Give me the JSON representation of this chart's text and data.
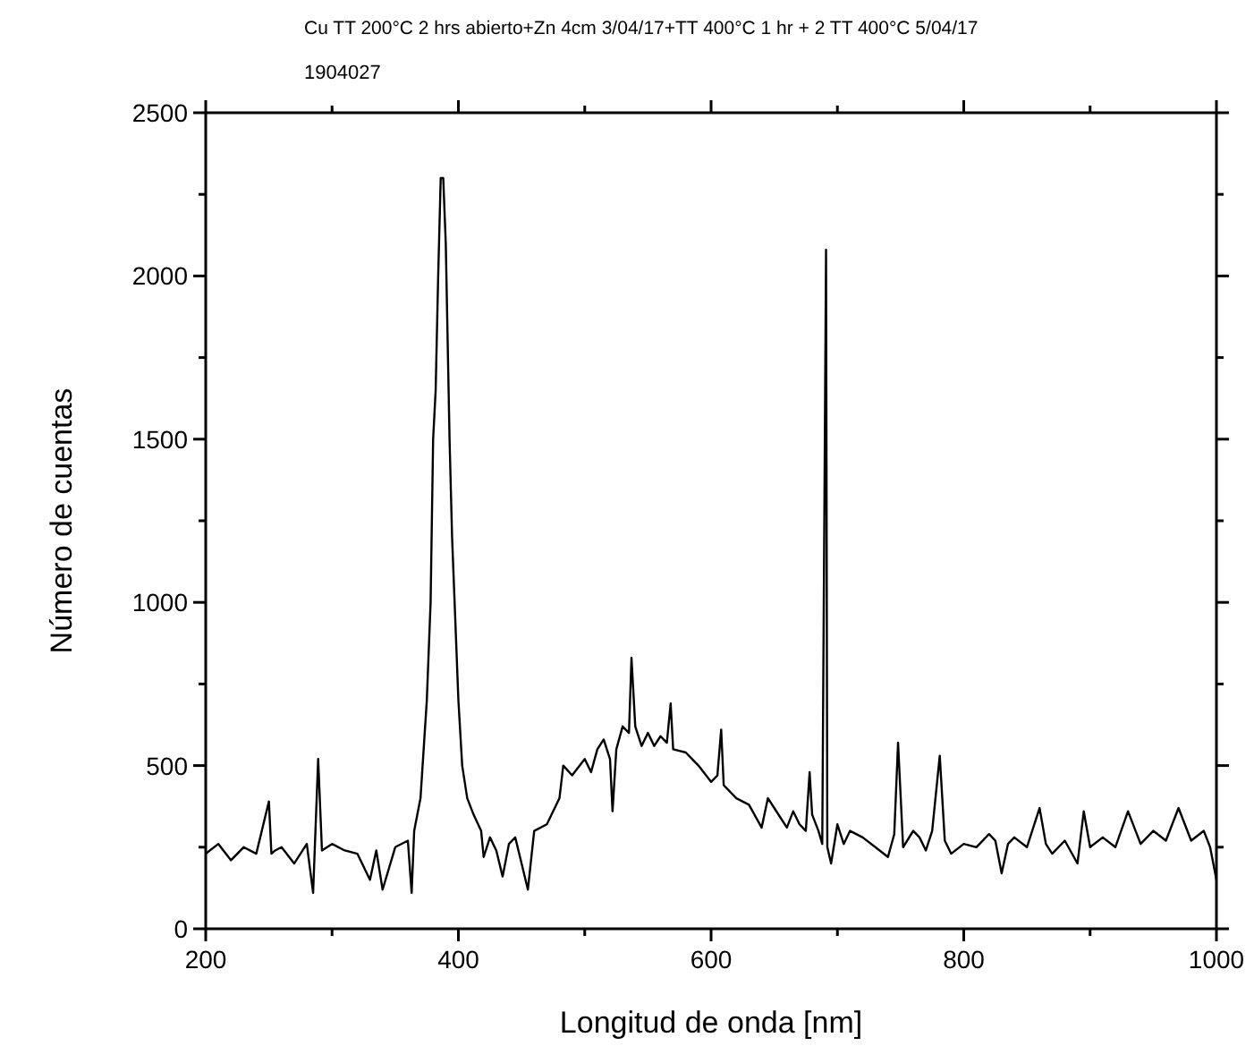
{
  "chart_data": {
    "type": "line",
    "title": "Cu TT 200°C 2 hrs abierto+Zn 4cm 3/04/17+TT 400°C 1 hr + 2 TT 400°C 5/04/17",
    "subtitle": "1904027",
    "xlabel": "Longitud de onda [nm]",
    "ylabel": "Número de cuentas",
    "xlim": [
      200,
      1000
    ],
    "ylim": [
      0,
      2500
    ],
    "xticks": [
      200,
      {
        "value": 300,
        "label": null
      },
      400,
      {
        "value": 500,
        "label": null
      },
      600,
      {
        "value": 700,
        "label": null
      },
      800,
      {
        "value": 900,
        "label": null
      },
      1000
    ],
    "yticks": [
      0,
      {
        "value": 250,
        "label": null
      },
      500,
      {
        "value": 750,
        "label": null
      },
      1000,
      {
        "value": 1250,
        "label": null
      },
      1500,
      {
        "value": 1750,
        "label": null
      },
      2000,
      {
        "value": 2250,
        "label": null
      },
      2500
    ],
    "grid": false,
    "marker": "none",
    "line_style": "solid",
    "series": [
      {
        "color": "#000000",
        "x": [
          200,
          210,
          220,
          230,
          240,
          250,
          252,
          255,
          260,
          270,
          280,
          285,
          289,
          292,
          300,
          310,
          320,
          330,
          335,
          340,
          350,
          360,
          363,
          365,
          370,
          375,
          378,
          380,
          382,
          384,
          386,
          388,
          390,
          393,
          395,
          398,
          400,
          403,
          407,
          412,
          418,
          420,
          425,
          430,
          435,
          440,
          445,
          450,
          455,
          460,
          470,
          480,
          483,
          490,
          500,
          505,
          510,
          515,
          520,
          522,
          525,
          530,
          535,
          537,
          540,
          545,
          550,
          555,
          560,
          565,
          568,
          570,
          580,
          590,
          600,
          605,
          608,
          610,
          620,
          630,
          640,
          645,
          650,
          660,
          665,
          670,
          675,
          678,
          680,
          685,
          688,
          691,
          692,
          695,
          700,
          705,
          710,
          720,
          730,
          740,
          745,
          748,
          752,
          760,
          765,
          770,
          775,
          781,
          785,
          790,
          800,
          810,
          820,
          825,
          830,
          835,
          840,
          850,
          860,
          865,
          870,
          880,
          890,
          895,
          900,
          910,
          920,
          930,
          940,
          950,
          960,
          970,
          980,
          990,
          995,
          1000
        ],
        "values": [
          230,
          260,
          210,
          250,
          230,
          390,
          230,
          240,
          250,
          200,
          260,
          110,
          520,
          240,
          260,
          240,
          230,
          150,
          240,
          120,
          250,
          270,
          110,
          300,
          400,
          700,
          1000,
          1500,
          1650,
          2000,
          2300,
          2300,
          2100,
          1500,
          1200,
          900,
          700,
          500,
          400,
          350,
          300,
          220,
          280,
          240,
          160,
          260,
          280,
          200,
          120,
          300,
          320,
          400,
          500,
          470,
          520,
          480,
          550,
          580,
          520,
          360,
          550,
          620,
          600,
          830,
          620,
          560,
          600,
          560,
          590,
          570,
          690,
          550,
          540,
          500,
          450,
          470,
          610,
          440,
          400,
          380,
          310,
          400,
          370,
          310,
          360,
          320,
          300,
          480,
          350,
          300,
          260,
          2080,
          250,
          200,
          320,
          260,
          300,
          280,
          250,
          220,
          290,
          570,
          250,
          300,
          280,
          240,
          300,
          530,
          270,
          230,
          260,
          250,
          290,
          270,
          170,
          260,
          280,
          250,
          370,
          260,
          230,
          270,
          200,
          360,
          250,
          280,
          250,
          360,
          260,
          300,
          270,
          370,
          270,
          300,
          250,
          150
        ]
      }
    ]
  }
}
